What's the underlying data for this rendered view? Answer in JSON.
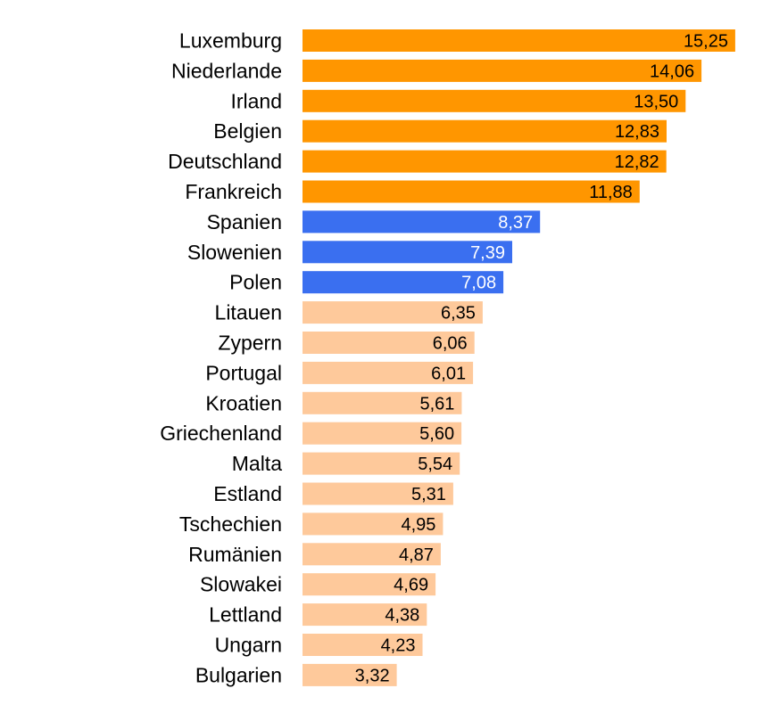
{
  "chart_data": {
    "type": "bar",
    "orientation": "horizontal",
    "title": "",
    "xlabel": "",
    "ylabel": "",
    "xlim": [
      0,
      15.25
    ],
    "grid": false,
    "legend": "none",
    "categories": [
      "Luxemburg",
      "Niederlande",
      "Irland",
      "Belgien",
      "Deutschland",
      "Frankreich",
      "Spanien",
      "Slowenien",
      "Polen",
      "Litauen",
      "Zypern",
      "Portugal",
      "Kroatien",
      "Griechenland",
      "Malta",
      "Estland",
      "Tschechien",
      "Rumänien",
      "Slowakei",
      "Lettland",
      "Ungarn",
      "Bulgarien"
    ],
    "values": [
      15.25,
      14.06,
      13.5,
      12.83,
      12.82,
      11.88,
      8.37,
      7.39,
      7.08,
      6.35,
      6.06,
      6.01,
      5.61,
      5.6,
      5.54,
      5.31,
      4.95,
      4.87,
      4.69,
      4.38,
      4.23,
      3.32
    ],
    "value_labels": [
      "15,25",
      "14,06",
      "13,50",
      "12,83",
      "12,82",
      "11,88",
      "8,37",
      "7,39",
      "7,08",
      "6,35",
      "6,06",
      "6,01",
      "5,61",
      "5,60",
      "5,54",
      "5,31",
      "4,95",
      "4,87",
      "4,69",
      "4,38",
      "4,23",
      "3,32"
    ],
    "groups": [
      "high",
      "high",
      "high",
      "high",
      "high",
      "high",
      "mid",
      "mid",
      "mid",
      "low",
      "low",
      "low",
      "low",
      "low",
      "low",
      "low",
      "low",
      "low",
      "low",
      "low",
      "low",
      "low"
    ],
    "colors": {
      "high": "#ff9600",
      "mid": "#3a6ff0",
      "low": "#fec99b"
    },
    "label_colors": {
      "high": "#000000",
      "mid": "#ffffff",
      "low": "#000000"
    }
  }
}
